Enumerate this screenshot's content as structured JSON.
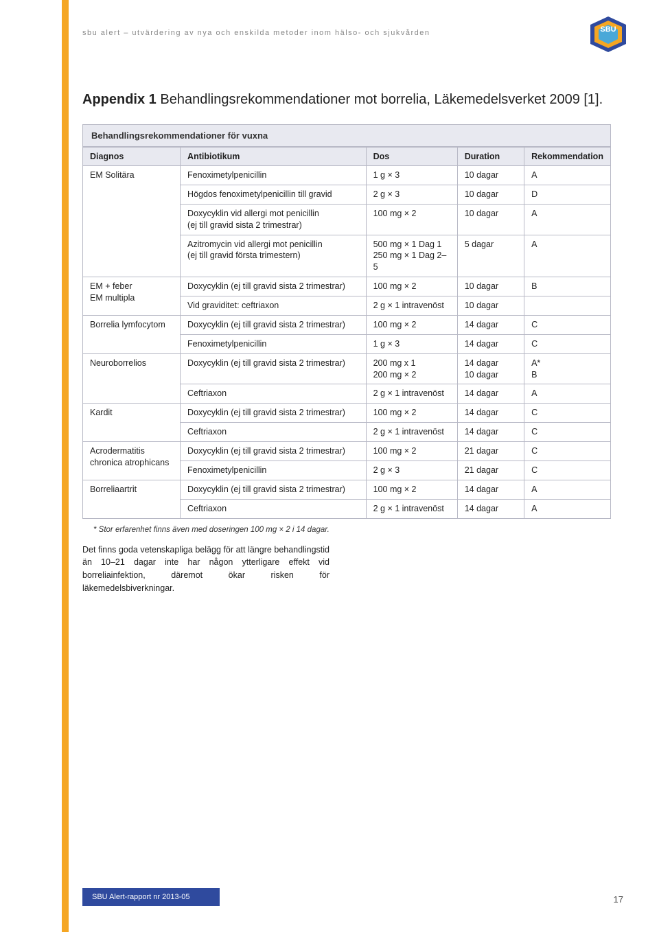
{
  "colors": {
    "accent": "#f5a623",
    "table_header_bg": "#e8e9f0",
    "table_border": "#b7b8c5",
    "footer_band_bg": "#2f4a9e",
    "logo_top": "#2f4a9e",
    "logo_mid": "#f5a623",
    "logo_bottom": "#4aa8d8"
  },
  "header": {
    "tagline": "sbu alert – utvärdering av nya och enskilda metoder inom hälso- och sjukvården",
    "logo_text": "SBU"
  },
  "title": {
    "prefix": "Appendix 1 ",
    "rest": "Behandlingsrekommendationer mot borrelia, Läkemedelsverket 2009 [1]."
  },
  "table": {
    "caption": "Behandlingsrekommendationer för vuxna",
    "columns": [
      "Diagnos",
      "Antibiotikum",
      "Dos",
      "Duration",
      "Rekommendation"
    ],
    "rows": [
      {
        "diag": "EM Solitära",
        "ab": "Fenoximetylpenicillin",
        "dos": "1 g × 3",
        "dur": "10 dagar",
        "rec": "A"
      },
      {
        "diag": "",
        "ab": "Högdos fenoximetylpenicillin till gravid",
        "dos": "2 g × 3",
        "dur": "10 dagar",
        "rec": "D"
      },
      {
        "diag": "",
        "ab": "Doxycyklin vid allergi mot penicillin\n(ej till gravid sista 2 trimestrar)",
        "dos": "100 mg × 2",
        "dur": "10 dagar",
        "rec": "A"
      },
      {
        "diag": "",
        "ab": "Azitromycin vid allergi mot penicillin\n(ej till gravid första trimestern)",
        "dos": "500 mg × 1 Dag 1\n250 mg × 1 Dag 2–5",
        "dur": "5 dagar",
        "rec": "A"
      },
      {
        "diag": "EM + feber\nEM multipla",
        "ab": "Doxycyklin (ej till gravid sista 2 trimestrar)",
        "dos": "100 mg × 2",
        "dur": "10 dagar",
        "rec": "B"
      },
      {
        "diag": "",
        "ab": "Vid graviditet: ceftriaxon",
        "dos": "2 g × 1 intravenöst",
        "dur": "10 dagar",
        "rec": ""
      },
      {
        "diag": "Borrelia lymfocytom",
        "ab": "Doxycyklin (ej till gravid sista 2 trimestrar)",
        "dos": "100 mg × 2",
        "dur": "14 dagar",
        "rec": "C"
      },
      {
        "diag": "",
        "ab": "Fenoximetylpenicillin",
        "dos": "1 g × 3",
        "dur": "14 dagar",
        "rec": "C"
      },
      {
        "diag": "Neuroborrelios",
        "ab": "Doxycyklin (ej till gravid sista 2 trimestrar)",
        "dos": "200 mg x 1\n200 mg × 2",
        "dur": "14 dagar\n10 dagar",
        "rec": "A*\nB"
      },
      {
        "diag": "",
        "ab": "Ceftriaxon",
        "dos": "2 g × 1 intravenöst",
        "dur": "14 dagar",
        "rec": "A"
      },
      {
        "diag": "Kardit",
        "ab": "Doxycyklin (ej till gravid sista 2 trimestrar)",
        "dos": "100 mg × 2",
        "dur": "14 dagar",
        "rec": "C"
      },
      {
        "diag": "",
        "ab": "Ceftriaxon",
        "dos": "2 g × 1 intravenöst",
        "dur": "14 dagar",
        "rec": "C"
      },
      {
        "diag": "Acrodermatitis\nchronica atrophicans",
        "ab": "Doxycyklin (ej till gravid sista 2 trimestrar)",
        "dos": "100 mg × 2",
        "dur": "21 dagar",
        "rec": "C"
      },
      {
        "diag": "",
        "ab": "Fenoximetylpenicillin",
        "dos": "2 g × 3",
        "dur": "21 dagar",
        "rec": "C"
      },
      {
        "diag": "Borreliaartrit",
        "ab": "Doxycyklin (ej till gravid sista 2 trimestrar)",
        "dos": "100 mg × 2",
        "dur": "14 dagar",
        "rec": "A"
      },
      {
        "diag": "",
        "ab": "Ceftriaxon",
        "dos": "2 g × 1 intravenöst",
        "dur": "14 dagar",
        "rec": "A"
      }
    ],
    "rowspans": [
      {
        "row": 0,
        "span": 4
      },
      {
        "row": 4,
        "span": 2
      },
      {
        "row": 6,
        "span": 2
      },
      {
        "row": 8,
        "span": 2
      },
      {
        "row": 10,
        "span": 2
      },
      {
        "row": 12,
        "span": 2
      },
      {
        "row": 14,
        "span": 2
      }
    ],
    "col_widths_pct": [
      19,
      37,
      18,
      13,
      13
    ]
  },
  "footnote": "* Stor erfarenhet finns även med doseringen 100 mg × 2 i 14 dagar.",
  "paragraph": "Det finns goda vetenskapliga belägg för att längre behandlingstid än 10–21 dagar inte har någon ytterligare effekt vid borreliainfektion, däremot ökar risken för läkemedelsbiverkningar.",
  "footer": {
    "band": "SBU Alert-rapport nr 2013-05",
    "page": "17"
  }
}
